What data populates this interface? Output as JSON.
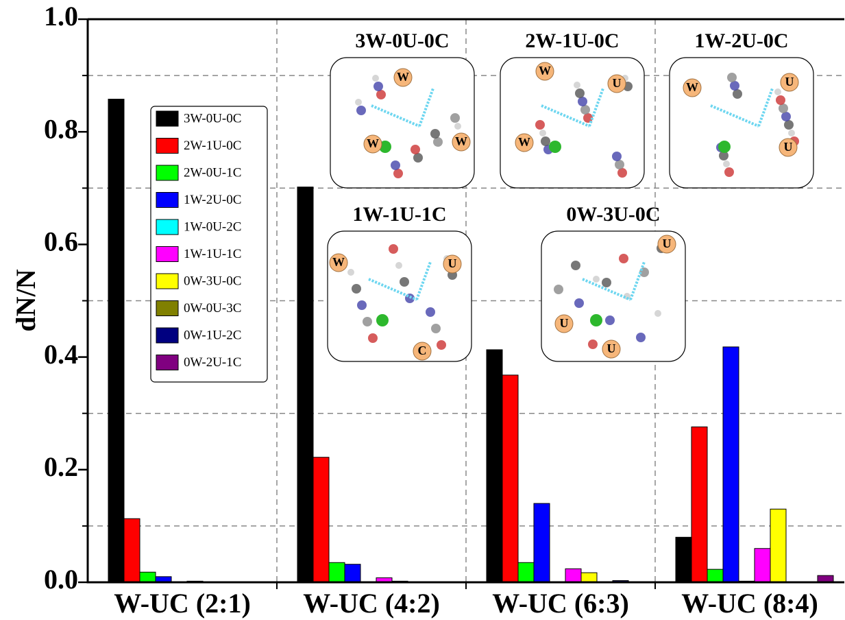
{
  "chart_data": {
    "type": "bar",
    "y_label": "dN/N",
    "categories": [
      "W-UC (2:1)",
      "W-UC (4:2)",
      "W-UC (6:3)",
      "W-UC (8:4)"
    ],
    "series": [
      {
        "name": "3W-0U-0C",
        "color": "#000000",
        "values": [
          0.858,
          0.702,
          0.413,
          0.08
        ]
      },
      {
        "name": "2W-1U-0C",
        "color": "#ff0000",
        "values": [
          0.113,
          0.222,
          0.368,
          0.276
        ]
      },
      {
        "name": "2W-0U-1C",
        "color": "#00ff00",
        "values": [
          0.018,
          0.035,
          0.035,
          0.023
        ]
      },
      {
        "name": "1W-2U-0C",
        "color": "#0000ff",
        "values": [
          0.01,
          0.032,
          0.14,
          0.418
        ]
      },
      {
        "name": "1W-0U-2C",
        "color": "#00ffff",
        "values": [
          0,
          0,
          0,
          0.002
        ]
      },
      {
        "name": "1W-1U-1C",
        "color": "#ff00ff",
        "values": [
          0.002,
          0.008,
          0.024,
          0.06
        ]
      },
      {
        "name": "0W-3U-0C",
        "color": "#ffff00",
        "values": [
          0,
          0.002,
          0.017,
          0.13
        ]
      },
      {
        "name": "0W-0U-3C",
        "color": "#808000",
        "values": [
          0,
          0,
          0,
          0
        ]
      },
      {
        "name": "0W-1U-2C",
        "color": "#000080",
        "values": [
          0,
          0,
          0.003,
          0
        ]
      },
      {
        "name": "0W-2U-1C",
        "color": "#800080",
        "values": [
          0,
          0,
          0,
          0.012
        ]
      }
    ],
    "ylim": [
      0,
      1
    ],
    "yticks": [
      {
        "value": 0,
        "label": "0.0"
      },
      0.2,
      0.4,
      0.6,
      0.8,
      {
        "value": 1,
        "label": "1.0"
      }
    ],
    "grid_yticks": [
      0.1,
      0.3,
      0.5,
      0.7,
      0.9
    ],
    "grid": true,
    "legend": "upper left",
    "insets": [
      {
        "title": "3W-0U-0C",
        "labels": [
          "W",
          "W",
          "W"
        ]
      },
      {
        "title": "2W-1U-0C",
        "labels": [
          "W",
          "U",
          "W"
        ]
      },
      {
        "title": "1W-2U-0C",
        "labels": [
          "W",
          "U",
          "U"
        ]
      },
      {
        "title": "1W-1U-1C",
        "labels": [
          "W",
          "U",
          "C"
        ]
      },
      {
        "title": "0W-3U-0C",
        "labels": [
          "U",
          "U",
          "U"
        ]
      }
    ]
  }
}
